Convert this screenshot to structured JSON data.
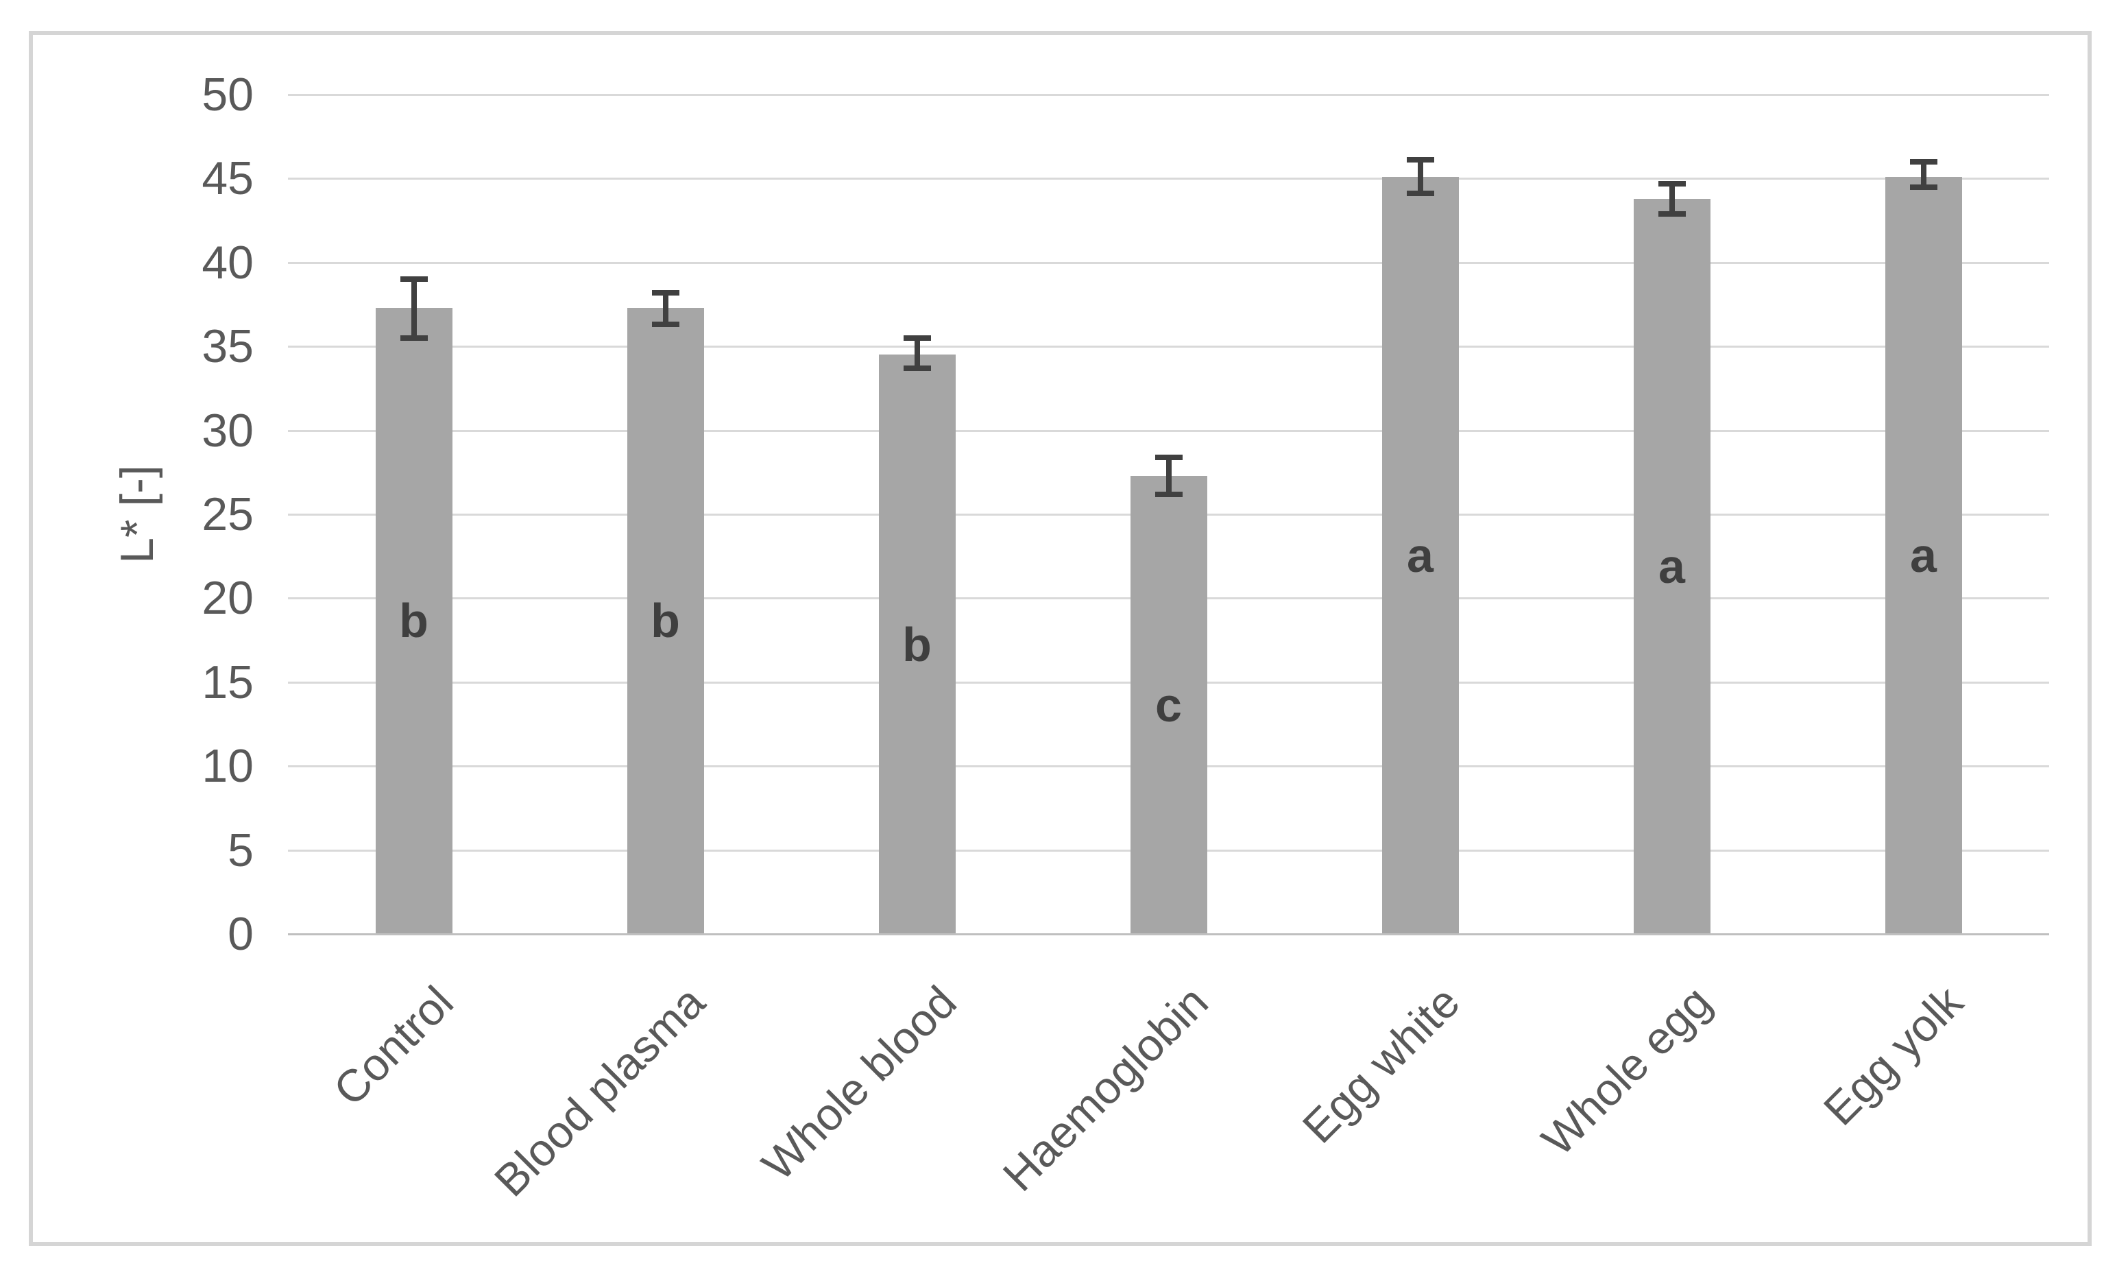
{
  "figure": {
    "background_color": "#ffffff",
    "border_color": "#d5d5d5"
  },
  "chart_data": {
    "type": "bar",
    "title": "",
    "xlabel": "",
    "ylabel": "L* [-]",
    "ylim": [
      0,
      50
    ],
    "yticks": [
      "0",
      "5",
      "10",
      "15",
      "20",
      "25",
      "30",
      "35",
      "40",
      "45",
      "50"
    ],
    "grid": "horizontal",
    "legend_position": "none",
    "categories": [
      "Control",
      "Blood plasma",
      "Whole blood",
      "Haemoglobin",
      "Egg white",
      "Whole egg",
      "Egg yolk"
    ],
    "values": [
      37.3,
      37.3,
      34.5,
      27.3,
      45.1,
      43.8,
      45.1
    ],
    "error_upper": [
      39.0,
      38.2,
      35.5,
      28.4,
      46.1,
      44.7,
      46.0
    ],
    "error_lower": [
      35.5,
      36.3,
      33.7,
      26.2,
      44.1,
      42.9,
      44.5
    ],
    "significance_letters": [
      "b",
      "b",
      "b",
      "c",
      "a",
      "a",
      "a"
    ],
    "bar_color": "#a6a6a6",
    "error_bar_color": "#404040",
    "gridline_color": "#d9d9d9",
    "axis_line_color": "#bfbfbf",
    "tick_label_color": "#595959",
    "letter_color": "#3f3f3f"
  }
}
